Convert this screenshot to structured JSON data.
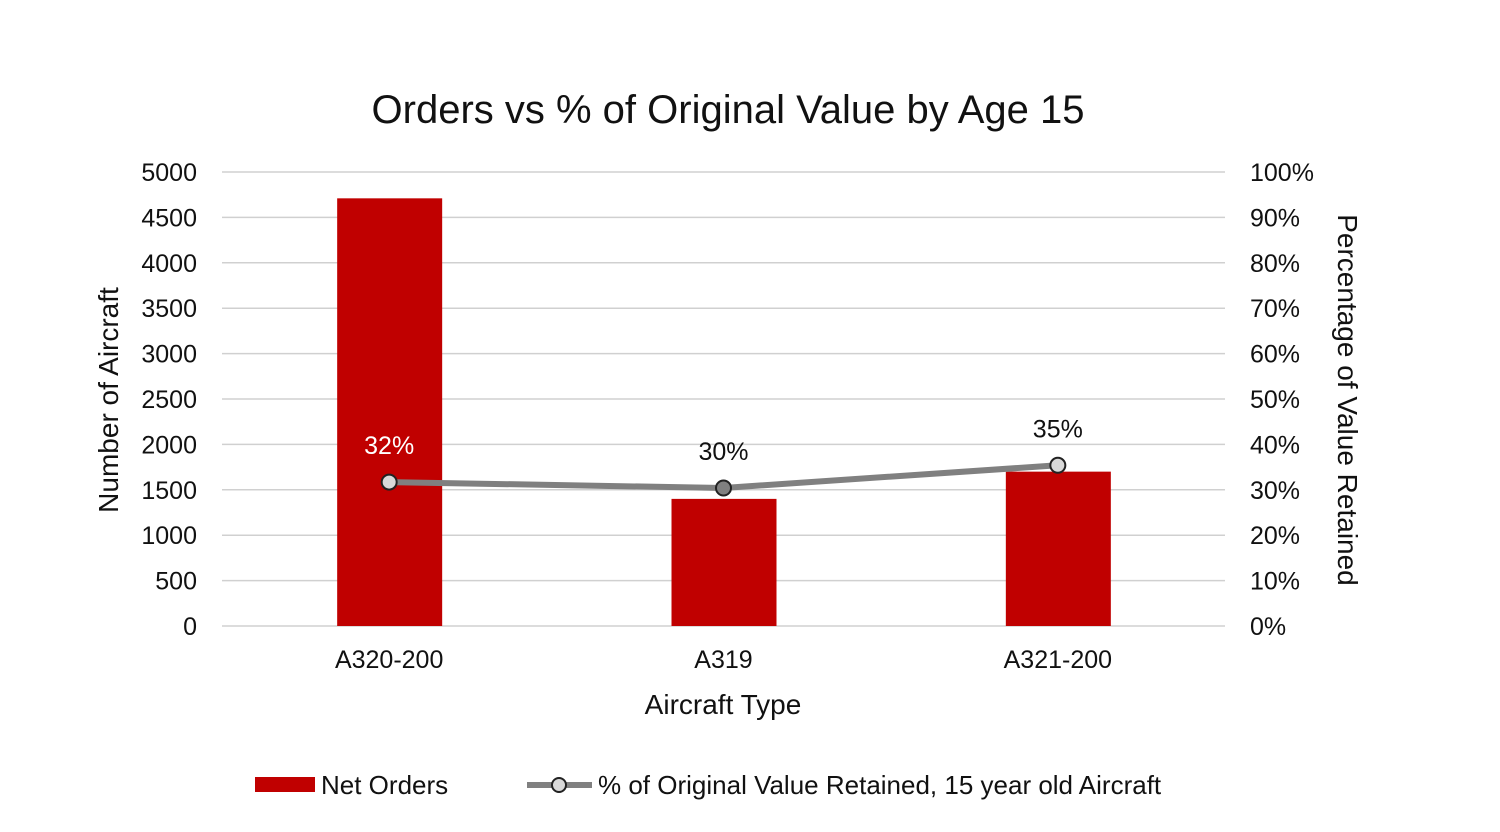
{
  "chart_data": {
    "type": "bar+line",
    "title": "Orders vs % of Original Value by Age 15",
    "xlabel": "Aircraft Type",
    "ylabel": "Number of Aircraft",
    "y2label": "Percentage of Value Retained",
    "categories": [
      "A320-200",
      "A319",
      "A321-200"
    ],
    "ylim": [
      0,
      5000
    ],
    "y_ticks": [
      "0",
      "500",
      "1000",
      "1500",
      "2000",
      "2500",
      "3000",
      "3500",
      "4000",
      "4500",
      "5000"
    ],
    "y2lim": [
      0,
      100
    ],
    "y2_ticks": [
      "0%",
      "10%",
      "20%",
      "30%",
      "40%",
      "50%",
      "60%",
      "70%",
      "80%",
      "90%",
      "100%"
    ],
    "grid": true,
    "legend_position": "bottom",
    "series": [
      {
        "name": "Net Orders",
        "type": "bar",
        "axis": "left",
        "color": "#c00000",
        "values": [
          4710,
          1400,
          1700
        ]
      },
      {
        "name": "% of Original Value Retained, 15 year old Aircraft",
        "type": "line",
        "axis": "right",
        "color": "#808080",
        "values": [
          31.7,
          30.4,
          35.4
        ],
        "data_labels": [
          "32%",
          "30%",
          "35%"
        ]
      }
    ]
  }
}
